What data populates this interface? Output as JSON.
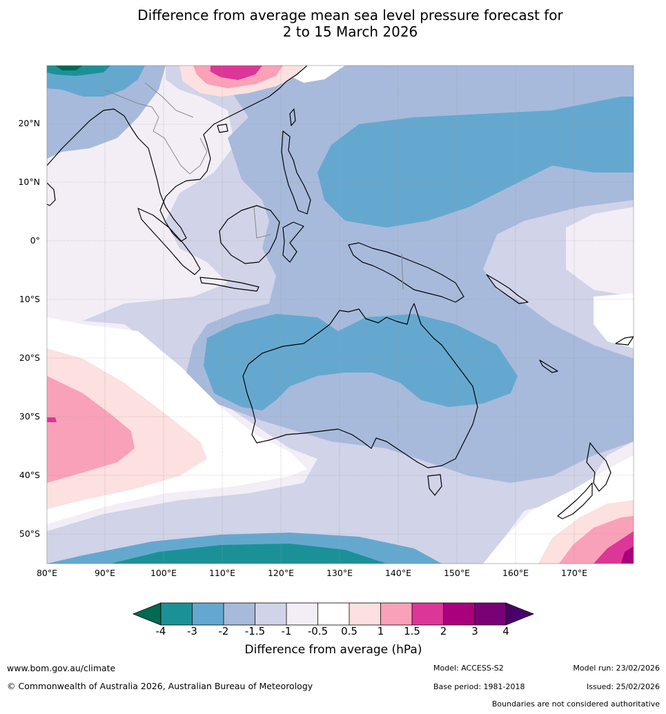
{
  "title": {
    "line1": "Difference from average mean sea level pressure forecast for",
    "line2": "2 to 15 March 2026"
  },
  "map": {
    "lon_labels": [
      "80°E",
      "90°E",
      "100°E",
      "110°E",
      "120°E",
      "130°E",
      "140°E",
      "150°E",
      "160°E",
      "170°E"
    ],
    "lat_labels": [
      "20°N",
      "10°N",
      "0°",
      "10°S",
      "20°S",
      "30°S",
      "40°S",
      "50°S"
    ]
  },
  "colorbar": {
    "title": "Difference from average (hPa)",
    "ticks": [
      "-4",
      "-3",
      "-2",
      "-1.5",
      "-1",
      "-0.5",
      "0.5",
      "1",
      "1.5",
      "2",
      "3",
      "4"
    ],
    "colors": {
      "under": "#006a52",
      "c1": "#1b9197",
      "c2": "#65a8cf",
      "c3": "#a7badb",
      "c4": "#d1d3e8",
      "c5": "#f3eef6",
      "c6": "#ffffff",
      "c7": "#fde0e0",
      "c8": "#f9a1b8",
      "c9": "#dc3698",
      "c10": "#ab007e",
      "c11": "#7a0077",
      "over": "#49006a"
    }
  },
  "footer": {
    "website": "www.bom.gov.au/climate",
    "copyright": "© Commonwealth of Australia 2026, Australian Bureau of Meteorology",
    "model": "Model: ACCESS-S2",
    "base_period": "Base period: 1981-2018",
    "model_run": "Model run: 23/02/2026",
    "issued": "Issued: 25/02/2026",
    "disclaimer": "Boundaries are not considered authoritative"
  }
}
